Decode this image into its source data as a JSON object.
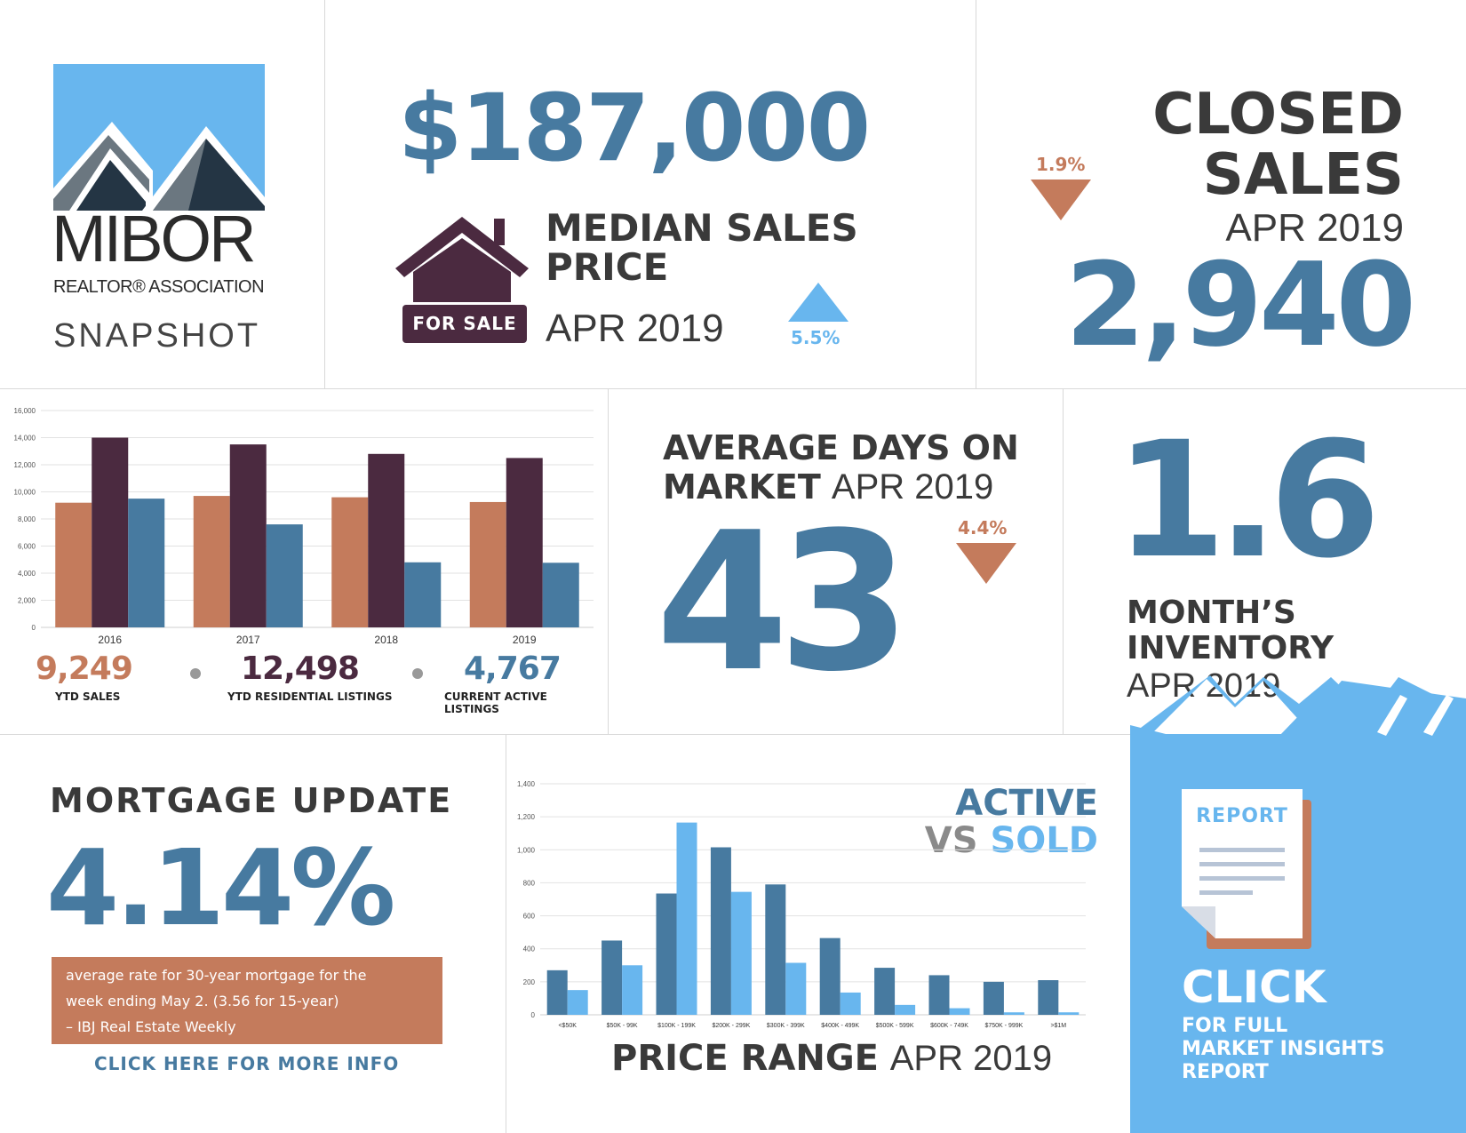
{
  "colors": {
    "blue": "#477aa0",
    "light_blue": "#68b6ee",
    "rust": "#c47b5c",
    "plum": "#4b2a40",
    "dark_gray": "#3a3a3a"
  },
  "logo": {
    "name": "MIBOR",
    "subtitle": "REALTOR® ASSOCIATION",
    "tag": "SNAPSHOT"
  },
  "median_price": {
    "value": "$187,000",
    "label_line1": "MEDIAN SALES",
    "label_line2": "PRICE",
    "period": "APR 2019",
    "change": "5.5%",
    "change_direction": "up",
    "sign_text": "FOR SALE"
  },
  "closed_sales": {
    "label_line1": "CLOSED",
    "label_line2": "SALES",
    "period": "APR 2019",
    "value": "2,940",
    "change": "1.9%",
    "change_direction": "down"
  },
  "days_on_market": {
    "label_line1": "AVERAGE DAYS ON",
    "label_line2_bold": "MARKET",
    "period": "APR 2019",
    "value": "43",
    "change": "4.4%",
    "change_direction": "down"
  },
  "inventory": {
    "value": "1.6",
    "label_line1": "MONTH’S",
    "label_line2": "INVENTORY",
    "period": "APR 2019"
  },
  "ytd_stats": [
    {
      "value": "9,249",
      "caption": "YTD SALES",
      "color": "#c47b5c"
    },
    {
      "value": "12,498",
      "caption": "YTD RESIDENTIAL LISTINGS",
      "color": "#4b2a40"
    },
    {
      "value": "4,767",
      "caption": "CURRENT ACTIVE LISTINGS",
      "color": "#477aa0"
    }
  ],
  "mortgage": {
    "title": "MORTGAGE UPDATE",
    "rate": "4.14%",
    "note_line1": "average rate for 30-year mortgage for the",
    "note_line2": "week ending May 2. (3.56 for 15-year)",
    "note_line3": "– IBJ Real Estate Weekly",
    "link": "CLICK HERE FOR MORE INFO"
  },
  "price_range": {
    "title_line1": "ACTIVE",
    "title_vs": "VS",
    "title_sold": "SOLD",
    "caption_bold": "PRICE RANGE",
    "caption_period": "APR 2019"
  },
  "report": {
    "doc_label": "REPORT",
    "click": "CLICK",
    "line1": "FOR FULL",
    "line2": "MARKET INSIGHTS",
    "line3": "REPORT"
  },
  "chart_data": [
    {
      "type": "bar",
      "categories": [
        "2016",
        "2017",
        "2018",
        "2019"
      ],
      "series": [
        {
          "name": "YTD SALES",
          "color": "#c47b5c",
          "values": [
            9200,
            9700,
            9600,
            9249
          ]
        },
        {
          "name": "YTD RESIDENTIAL LISTINGS",
          "color": "#4b2a40",
          "values": [
            14000,
            13500,
            12800,
            12498
          ]
        },
        {
          "name": "CURRENT ACTIVE LISTINGS",
          "color": "#477aa0",
          "values": [
            9500,
            7600,
            4800,
            4767
          ]
        }
      ],
      "yticks": [
        "0",
        "2,000",
        "4,000",
        "6,000",
        "8,000",
        "10,000",
        "12,000",
        "14,000",
        "16,000"
      ],
      "ylim": [
        0,
        16000
      ],
      "grid": true
    },
    {
      "type": "bar",
      "title": "ACTIVE VS SOLD",
      "categories": [
        "<$50K",
        "$50K - 99K",
        "$100K - 199K",
        "$200K - 299K",
        "$300K - 399K",
        "$400K - 499K",
        "$500K - 599K",
        "$600K - 749K",
        "$750K - 999K",
        ">$1M"
      ],
      "series": [
        {
          "name": "ACTIVE",
          "color": "#477aa0",
          "values": [
            270,
            450,
            735,
            1015,
            790,
            465,
            285,
            240,
            200,
            210
          ]
        },
        {
          "name": "SOLD",
          "color": "#68b6ee",
          "values": [
            150,
            300,
            1165,
            745,
            315,
            135,
            60,
            40,
            15,
            15
          ]
        }
      ],
      "yticks": [
        "0",
        "200",
        "400",
        "600",
        "800",
        "1,000",
        "1,200",
        "1,400"
      ],
      "ylim": [
        0,
        1400
      ],
      "grid": true
    }
  ]
}
